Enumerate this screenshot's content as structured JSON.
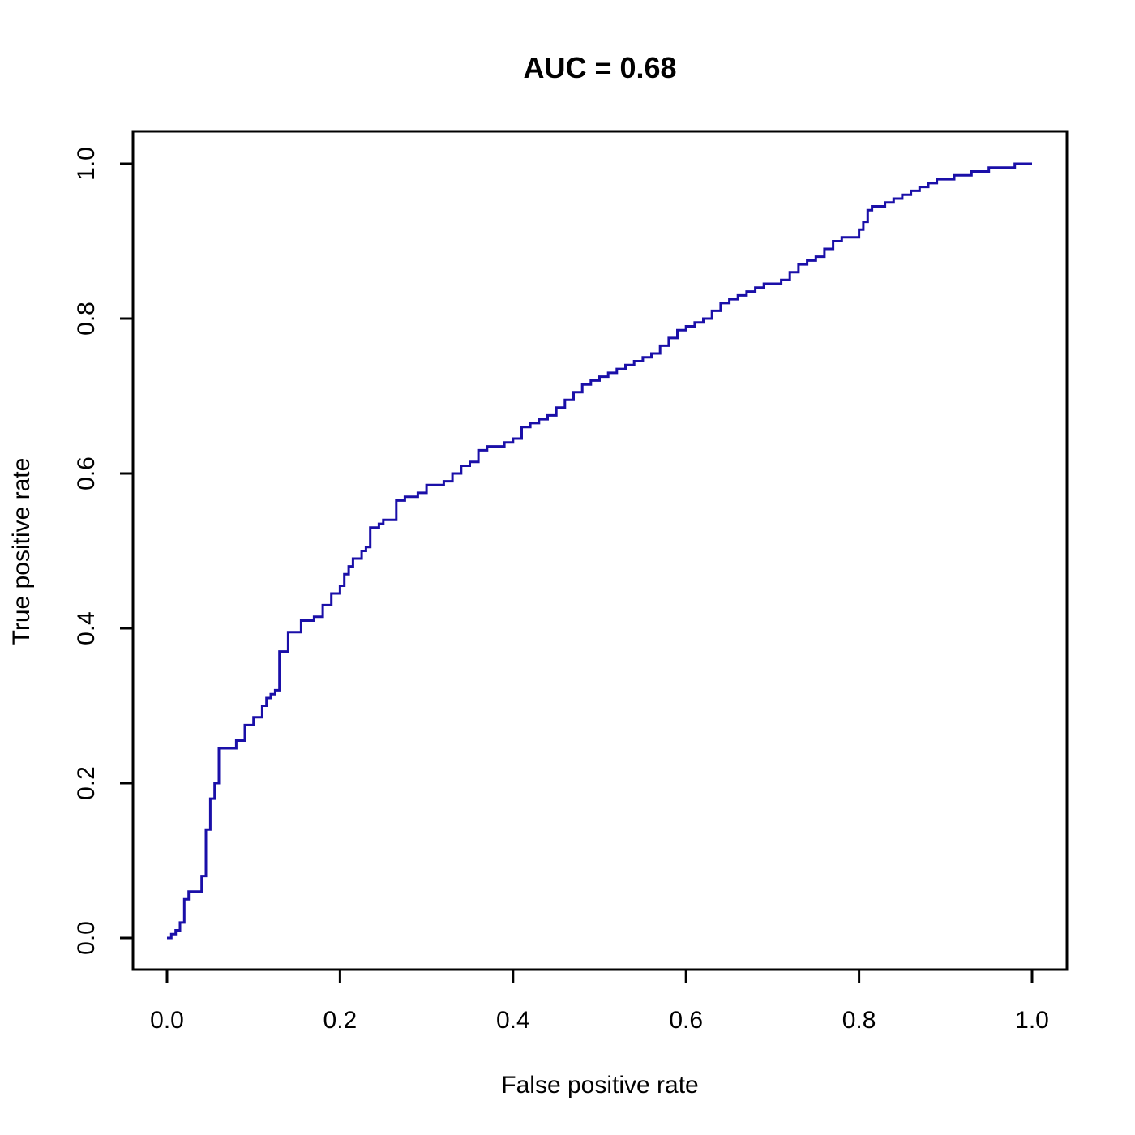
{
  "chart_data": {
    "type": "line",
    "title": "AUC = 0.68",
    "xlabel": "False positive rate",
    "ylabel": "True positive rate",
    "xlim": [
      0,
      1
    ],
    "ylim": [
      0,
      1
    ],
    "x_ticks": [
      0,
      0.2,
      0.4,
      0.6,
      0.8,
      1.0
    ],
    "y_ticks": [
      0,
      0.2,
      0.4,
      0.6,
      0.8,
      1.0
    ],
    "x_tick_labels": [
      "0.0",
      "0.2",
      "0.4",
      "0.6",
      "0.8",
      "1.0"
    ],
    "y_tick_labels": [
      "0.0",
      "0.2",
      "0.4",
      "0.6",
      "0.8",
      "1.0"
    ],
    "grid": false,
    "line_color": "#1a0fa8",
    "series": [
      {
        "x": [
          0.0,
          0.005,
          0.01,
          0.015,
          0.02,
          0.025,
          0.03,
          0.04,
          0.045,
          0.05,
          0.055,
          0.06,
          0.075,
          0.08,
          0.09,
          0.1,
          0.11,
          0.115,
          0.12,
          0.125,
          0.13,
          0.14,
          0.155,
          0.16,
          0.17,
          0.18,
          0.19,
          0.2,
          0.205,
          0.21,
          0.215,
          0.225,
          0.23,
          0.235,
          0.245,
          0.25,
          0.265,
          0.275,
          0.28,
          0.29,
          0.3,
          0.31,
          0.32,
          0.33,
          0.34,
          0.35,
          0.36,
          0.37,
          0.38,
          0.39,
          0.4,
          0.41,
          0.42,
          0.43,
          0.44,
          0.45,
          0.46,
          0.47,
          0.48,
          0.49,
          0.5,
          0.51,
          0.52,
          0.53,
          0.54,
          0.55,
          0.56,
          0.57,
          0.58,
          0.59,
          0.6,
          0.61,
          0.62,
          0.63,
          0.64,
          0.65,
          0.66,
          0.67,
          0.68,
          0.69,
          0.7,
          0.71,
          0.72,
          0.73,
          0.74,
          0.75,
          0.76,
          0.77,
          0.78,
          0.79,
          0.8,
          0.805,
          0.81,
          0.815,
          0.82,
          0.83,
          0.84,
          0.85,
          0.86,
          0.87,
          0.88,
          0.89,
          0.9,
          0.91,
          0.92,
          0.93,
          0.94,
          0.95,
          0.96,
          0.97,
          0.98,
          0.99,
          1.0
        ],
        "y": [
          0.0,
          0.005,
          0.01,
          0.02,
          0.05,
          0.06,
          0.06,
          0.08,
          0.14,
          0.18,
          0.2,
          0.245,
          0.245,
          0.255,
          0.275,
          0.285,
          0.3,
          0.31,
          0.315,
          0.32,
          0.37,
          0.395,
          0.41,
          0.41,
          0.415,
          0.43,
          0.445,
          0.455,
          0.47,
          0.48,
          0.49,
          0.5,
          0.505,
          0.53,
          0.535,
          0.54,
          0.565,
          0.57,
          0.57,
          0.575,
          0.585,
          0.585,
          0.59,
          0.6,
          0.61,
          0.615,
          0.63,
          0.635,
          0.635,
          0.64,
          0.645,
          0.66,
          0.665,
          0.67,
          0.675,
          0.685,
          0.695,
          0.705,
          0.715,
          0.72,
          0.725,
          0.73,
          0.735,
          0.74,
          0.745,
          0.75,
          0.755,
          0.765,
          0.775,
          0.785,
          0.79,
          0.795,
          0.8,
          0.81,
          0.82,
          0.825,
          0.83,
          0.835,
          0.84,
          0.845,
          0.845,
          0.85,
          0.86,
          0.87,
          0.875,
          0.88,
          0.89,
          0.9,
          0.905,
          0.905,
          0.915,
          0.925,
          0.94,
          0.945,
          0.945,
          0.95,
          0.955,
          0.96,
          0.965,
          0.97,
          0.975,
          0.98,
          0.98,
          0.985,
          0.985,
          0.99,
          0.99,
          0.995,
          0.995,
          0.995,
          1.0,
          1.0,
          1.0
        ]
      }
    ]
  }
}
